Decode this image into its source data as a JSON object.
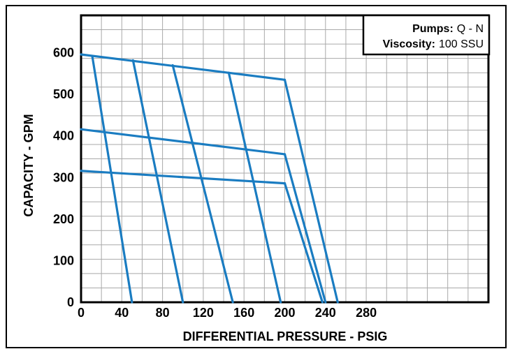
{
  "chart_data": {
    "type": "line",
    "title": "",
    "xlabel": "DIFFERENTIAL PRESSURE - PSIG",
    "ylabel": "CAPACITY - GPM",
    "xlim": [
      0,
      400
    ],
    "ylim": [
      0,
      690
    ],
    "x_ticks": [
      0,
      40,
      80,
      120,
      160,
      200,
      240,
      280
    ],
    "x_tick_labels": [
      "0",
      "40",
      "80",
      "120",
      "160",
      "200",
      "240",
      "280"
    ],
    "y_ticks": [
      0,
      100,
      200,
      300,
      400,
      500,
      600
    ],
    "y_tick_labels": [
      "0",
      "100",
      "200",
      "300",
      "400",
      "500",
      "600"
    ],
    "x_grid_step": 20,
    "y_grid_step": 34.5,
    "grid": true,
    "line_color": "#1a7cc1",
    "series": [
      {
        "values": [
          [
            0,
            596
          ],
          [
            200,
            535
          ]
        ]
      },
      {
        "values": [
          [
            0,
            416
          ],
          [
            200,
            356
          ]
        ]
      },
      {
        "values": [
          [
            0,
            316
          ],
          [
            200,
            286
          ]
        ]
      },
      {
        "values": [
          [
            200,
            535
          ],
          [
            252,
            0
          ]
        ]
      },
      {
        "values": [
          [
            200,
            356
          ],
          [
            240,
            0
          ]
        ]
      },
      {
        "values": [
          [
            200,
            286
          ],
          [
            237,
            0
          ]
        ]
      },
      {
        "values": [
          [
            11,
            592
          ],
          [
            50,
            0
          ]
        ]
      },
      {
        "values": [
          [
            51,
            582
          ],
          [
            100,
            0
          ]
        ]
      },
      {
        "values": [
          [
            90,
            570
          ],
          [
            149,
            0
          ]
        ]
      },
      {
        "values": [
          [
            145,
            552
          ],
          [
            196,
            0
          ]
        ]
      }
    ]
  },
  "legend": {
    "pumps_label": "Pumps:",
    "pumps_value": "Q - N",
    "viscosity_label": "Viscosity:",
    "viscosity_value": "100 SSU",
    "position": "top-right"
  }
}
